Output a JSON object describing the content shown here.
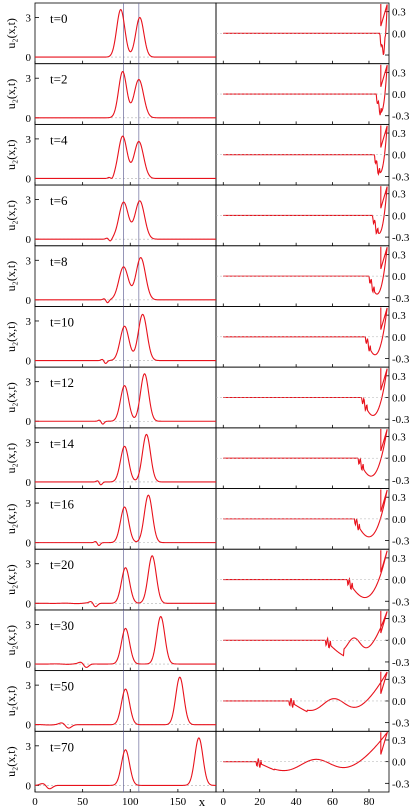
{
  "chart_data": {
    "type": "line",
    "line_color": "#e8121c",
    "guide_color": "#6a6a9a",
    "zero_color": "#b0b0b0",
    "left_column": {
      "ylabel": "u₂(x,t)",
      "xlabel": "x",
      "xlim": [
        0,
        190
      ],
      "ylim": [
        -0.5,
        4.1
      ],
      "xticks": [
        0,
        50,
        100,
        150
      ],
      "yticks": [
        0,
        3
      ],
      "guide_lines_x": [
        93,
        109
      ]
    },
    "right_column": {
      "xlim": [
        -4,
        91
      ],
      "ylim": [
        -0.42,
        0.42
      ],
      "xticks": [
        0,
        20,
        40,
        60,
        80
      ],
      "yticks": [
        "0.3",
        "0.0",
        "-0.3"
      ],
      "ytick_values": [
        0.3,
        0.0,
        -0.3
      ]
    },
    "panels": [
      {
        "label": "t=0",
        "t": 0,
        "peaks": [
          {
            "x": 90,
            "h": 3.6,
            "w": 6
          },
          {
            "x": 110,
            "h": 3.0,
            "w": 6
          }
        ],
        "tail": null,
        "right_start": 1.0,
        "right_end": 90
      },
      {
        "label": "t=2",
        "t": 2,
        "peaks": [
          {
            "x": 92,
            "h": 3.5,
            "w": 6
          },
          {
            "x": 109,
            "h": 2.9,
            "w": 7
          }
        ],
        "tail": null,
        "right_start": 1.0,
        "right_end": 88
      },
      {
        "label": "t=4",
        "t": 4,
        "peaks": [
          {
            "x": 92,
            "h": 3.2,
            "w": 6.5
          },
          {
            "x": 109,
            "h": 2.8,
            "w": 7
          }
        ],
        "tail": {
          "x": 80,
          "h": -0.2,
          "w": 3
        },
        "right_start": 0.95,
        "right_end": 87
      },
      {
        "label": "t=6",
        "t": 6,
        "peaks": [
          {
            "x": 93,
            "h": 2.8,
            "w": 7
          },
          {
            "x": 110,
            "h": 2.9,
            "w": 7
          }
        ],
        "tail": {
          "x": 78,
          "h": -0.25,
          "w": 3
        },
        "right_start": 0.9,
        "right_end": 86
      },
      {
        "label": "t=8",
        "t": 8,
        "peaks": [
          {
            "x": 93,
            "h": 2.5,
            "w": 7
          },
          {
            "x": 111,
            "h": 3.2,
            "w": 7
          }
        ],
        "tail": {
          "x": 75,
          "h": -0.3,
          "w": 3
        },
        "right_start": 0.85,
        "right_end": 84
      },
      {
        "label": "t=10",
        "t": 10,
        "peaks": [
          {
            "x": 94,
            "h": 2.6,
            "w": 6.5
          },
          {
            "x": 113,
            "h": 3.5,
            "w": 6.5
          }
        ],
        "tail": {
          "x": 73,
          "h": -0.3,
          "w": 3
        },
        "right_start": 0.8,
        "right_end": 82
      },
      {
        "label": "t=12",
        "t": 12,
        "peaks": [
          {
            "x": 94,
            "h": 2.7,
            "w": 6
          },
          {
            "x": 115,
            "h": 3.6,
            "w": 6
          }
        ],
        "tail": {
          "x": 70,
          "h": -0.3,
          "w": 3
        },
        "right_start": 0.75,
        "right_end": 80
      },
      {
        "label": "t=14",
        "t": 14,
        "peaks": [
          {
            "x": 94,
            "h": 2.7,
            "w": 6
          },
          {
            "x": 117,
            "h": 3.6,
            "w": 6
          }
        ],
        "tail": {
          "x": 68,
          "h": -0.3,
          "w": 3
        },
        "right_start": 0.7,
        "right_end": 78
      },
      {
        "label": "t=16",
        "t": 16,
        "peaks": [
          {
            "x": 94,
            "h": 2.7,
            "w": 6
          },
          {
            "x": 119,
            "h": 3.6,
            "w": 6
          }
        ],
        "tail": {
          "x": 66,
          "h": -0.3,
          "w": 3
        },
        "right_start": 0.65,
        "right_end": 76
      },
      {
        "label": "t=20",
        "t": 20,
        "peaks": [
          {
            "x": 95,
            "h": 2.7,
            "w": 6
          },
          {
            "x": 123,
            "h": 3.6,
            "w": 6
          }
        ],
        "tail": {
          "x": 62,
          "h": -0.35,
          "w": 4
        },
        "right_start": 0.6,
        "right_end": 72
      },
      {
        "label": "t=30",
        "t": 30,
        "peaks": [
          {
            "x": 95,
            "h": 2.7,
            "w": 6
          },
          {
            "x": 132,
            "h": 3.6,
            "w": 6
          }
        ],
        "tail": {
          "x": 52,
          "h": -0.35,
          "w": 5
        },
        "right_start": 0.5,
        "right_end": 60
      },
      {
        "label": "t=50",
        "t": 50,
        "peaks": [
          {
            "x": 95,
            "h": 2.7,
            "w": 6
          },
          {
            "x": 152,
            "h": 3.6,
            "w": 6
          }
        ],
        "tail": {
          "x": 33,
          "h": -0.35,
          "w": 6
        },
        "right_start": 0.3,
        "right_end": 40
      },
      {
        "label": "t=70",
        "t": 70,
        "peaks": [
          {
            "x": 95,
            "h": 2.7,
            "w": 6
          },
          {
            "x": 172,
            "h": 3.6,
            "w": 6
          }
        ],
        "tail": {
          "x": 13,
          "h": -0.35,
          "w": 6
        },
        "right_start": 0.15,
        "right_end": 22
      }
    ]
  }
}
